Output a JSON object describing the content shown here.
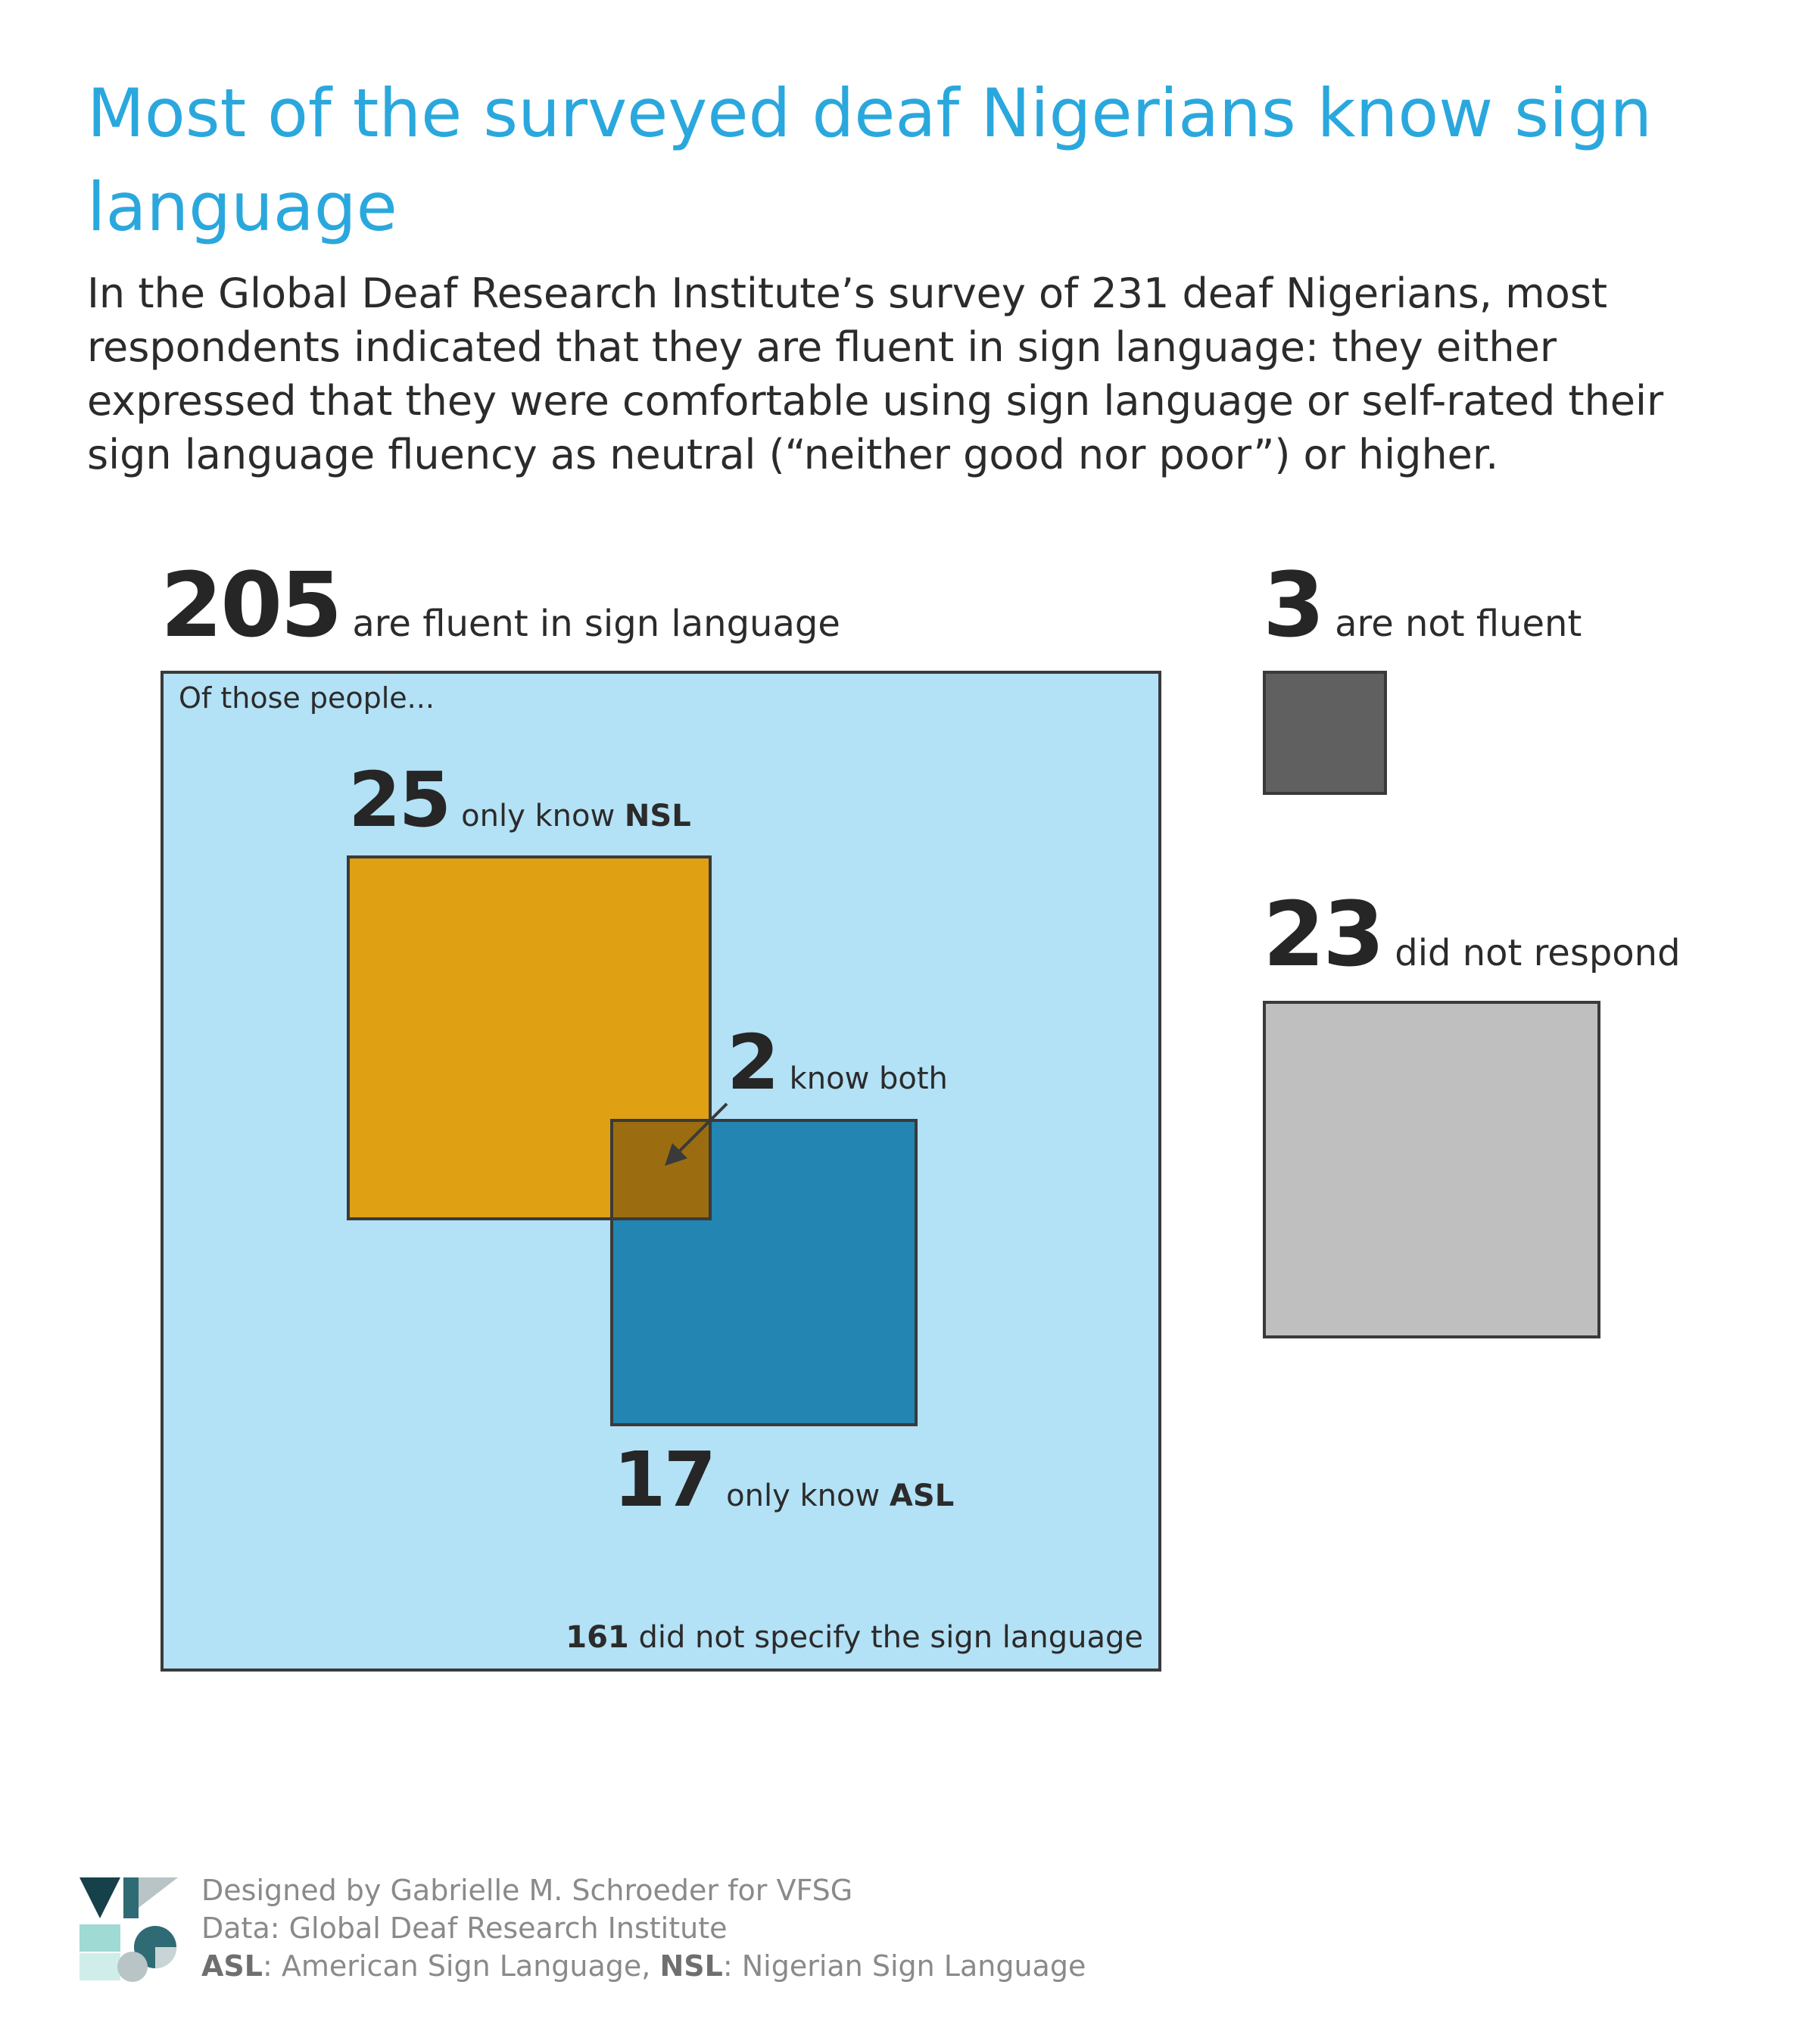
{
  "header": {
    "title": "Most of the surveyed deaf Nigerians know sign language",
    "subtitle": "In the Global Deaf Research Institute’s survey of 231 deaf Nigerians, most respondents indicated that they are fluent in sign language: they either expressed that they were comfortable using sign language or self-rated their sign language fluency as neutral (“neither good nor poor”) or higher."
  },
  "chart_data": {
    "type": "area-proportional squares",
    "total_surveyed": 231,
    "groups": [
      {
        "label": "are fluent in sign language",
        "value": 205,
        "color": "#b3e1f5"
      },
      {
        "label": "are not fluent",
        "value": 3,
        "color": "#606060"
      },
      {
        "label": "did not respond",
        "value": 23,
        "color": "#bfbfbf"
      }
    ],
    "fluent_breakdown": [
      {
        "label": "only know NSL",
        "value": 25,
        "color": "#dfa014"
      },
      {
        "label": "know both",
        "value": 2,
        "color": "#9b6d10"
      },
      {
        "label": "only know ASL",
        "value": 17,
        "color": "#2285b2"
      },
      {
        "label": "did not specify the sign language",
        "value": 161
      }
    ]
  },
  "labels": {
    "fluent_num": "205",
    "fluent_txt": "are fluent in sign language",
    "not_fluent_num": "3",
    "not_fluent_txt": "are not fluent",
    "no_resp_num": "23",
    "no_resp_txt": "did not respond",
    "of_those": "Of those people...",
    "nsl_num": "25",
    "nsl_txt": "only know ",
    "nsl_abbr": "NSL",
    "both_num": "2",
    "both_txt": "know both",
    "asl_num": "17",
    "asl_txt": "only know ",
    "asl_abbr": "ASL",
    "unspec_num": "161",
    "unspec_txt": " did not specify the sign language"
  },
  "footer": {
    "designed_by": "Designed by Gabrielle M. Schroeder for VFSG",
    "data_source": "Data: Global Deaf Research Institute",
    "asl_abbr": "ASL",
    "asl_def": ": American Sign Language, ",
    "nsl_abbr": "NSL",
    "nsl_def": ": Nigerian Sign Language"
  }
}
